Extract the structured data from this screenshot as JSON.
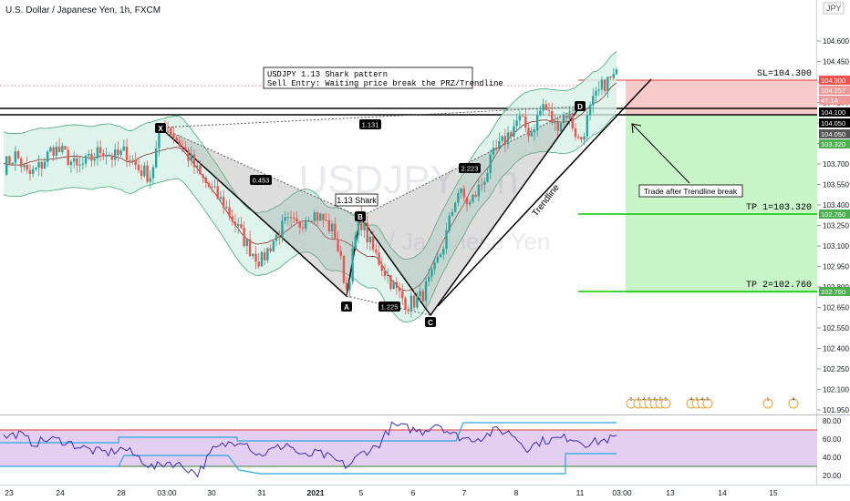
{
  "header": {
    "symbol_title": "U.S. Dollar / Japanese Yen, 1h, FXCM",
    "currency_tag": "JPY"
  },
  "watermark": {
    "symbol": "USDJPY, 1h",
    "name": "U.S. Dollar / Japanese Yen"
  },
  "annotations": {
    "idea_line1": "USDJPY 1.13 Shark pattern",
    "idea_line2": "Sell Entry: Waiting price break the PRZ/Trendline",
    "sl_label": "SL=104.300",
    "tp1_label": "TP 1=103.320",
    "tp2_label": "TP 2=102.760",
    "trade_note": "Trade after Trendline break",
    "trendline_label": "Trendline",
    "pattern_label": "1.13 Shark",
    "ratio_xb": "0.453",
    "ratio_xc": "1.131",
    "ratio_bc": "1.225",
    "ratio_ac": "2.223",
    "pt_x": "X",
    "pt_a": "A",
    "pt_b": "B",
    "pt_c": "C",
    "pt_d": "D"
  },
  "price_axis": {
    "ticks": [
      "104.600",
      "104.450",
      "104.300",
      "104.150",
      "104.000",
      "103.850",
      "103.700",
      "103.550",
      "103.400",
      "103.250",
      "103.100",
      "102.950",
      "102.800",
      "102.650",
      "102.550",
      "102.400",
      "102.250",
      "102.100",
      "101.950"
    ],
    "badges": [
      {
        "text": "104.300",
        "color": "#ef5350"
      },
      {
        "text": "104.257",
        "color": "#ef9a9a"
      },
      {
        "text": "47:14",
        "color": "#ef9a9a"
      },
      {
        "text": "104.100",
        "color": "#000000"
      },
      {
        "text": "104.050",
        "color": "#000000"
      },
      {
        "text": "104.050",
        "color": "#555555"
      },
      {
        "text": "103.320",
        "color": "#4caf50"
      },
      {
        "text": "102.760",
        "color": "#4caf50"
      },
      {
        "text": "102.760",
        "color": "#4caf50"
      }
    ]
  },
  "rsi_axis": {
    "ticks": [
      "80.00",
      "60.00",
      "40.00",
      "20.00"
    ]
  },
  "time_axis": {
    "labels": [
      "23",
      "24",
      "28",
      "03:00",
      "30",
      "31",
      "2021",
      "5",
      "6",
      "7",
      "8",
      "11",
      "03:00",
      "13",
      "14",
      "15"
    ]
  },
  "event_badges": [
    "5",
    "2",
    "4",
    "5",
    "6",
    "2",
    "5",
    "4",
    "1",
    "4",
    "6",
    "1",
    "4"
  ],
  "colors": {
    "bull": "#26a69a",
    "bear": "#ef5350",
    "band_fill": "#d6f0e6",
    "band_line": "#3fa774",
    "sl_zone": "#f8c9c9",
    "tp_zone": "#c8f5c8",
    "rsi_line": "#3b2bb3",
    "rsi_band": "#e5cff0",
    "tp_line": "#00c800"
  },
  "chart_data": {
    "type": "candlestick",
    "title": "U.S. Dollar / Japanese Yen, 1h, FXCM",
    "y_range": [
      101.9,
      104.72
    ],
    "levels": {
      "SL": 104.3,
      "TP1": 103.32,
      "TP2": 102.76,
      "entry_upper": 104.1,
      "entry_lower": 104.05
    },
    "pattern_points": [
      {
        "label": "X",
        "price": 103.95
      },
      {
        "label": "A",
        "price": 102.72
      },
      {
        "label": "B",
        "price": 103.27
      },
      {
        "label": "C",
        "price": 102.65
      },
      {
        "label": "D",
        "price": 104.13
      }
    ],
    "close_path": [
      103.62,
      103.7,
      103.55,
      103.62,
      103.75,
      103.7,
      103.6,
      103.66,
      103.74,
      103.68,
      103.72,
      103.6,
      103.55,
      103.95,
      103.82,
      103.7,
      103.55,
      103.45,
      103.35,
      103.2,
      103.05,
      102.95,
      103.1,
      103.22,
      103.2,
      103.3,
      103.25,
      103.15,
      102.75,
      103.27,
      103.05,
      102.9,
      102.75,
      102.65,
      102.7,
      102.85,
      103.1,
      103.45,
      103.35,
      103.5,
      103.7,
      103.82,
      103.95,
      103.85,
      104.05,
      103.9,
      104.0,
      103.78,
      104.05,
      104.2,
      104.25
    ],
    "rsi": {
      "ylim": [
        10,
        90
      ],
      "levels": [
        70,
        30
      ],
      "values": [
        62,
        66,
        55,
        60,
        58,
        52,
        47,
        45,
        50,
        40,
        28,
        35,
        30,
        22,
        48,
        55,
        60,
        42,
        48,
        55,
        40,
        45,
        38,
        30,
        45,
        52,
        75,
        72,
        68,
        78,
        65,
        60,
        62,
        70,
        66,
        50,
        58,
        60,
        62,
        55,
        58,
        62
      ]
    }
  }
}
